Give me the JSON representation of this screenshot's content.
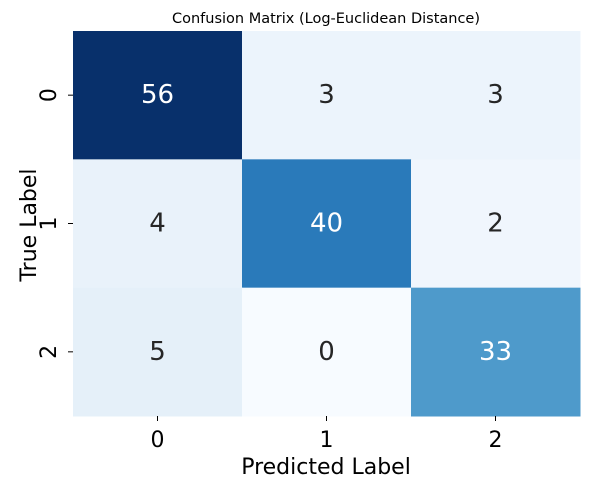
{
  "chart_data": {
    "type": "heatmap",
    "title": "Confusion Matrix (Log-Euclidean Distance)",
    "xlabel": "Predicted Label",
    "ylabel": "True Label",
    "x_categories": [
      "0",
      "1",
      "2"
    ],
    "y_categories": [
      "0",
      "1",
      "2"
    ],
    "values": [
      [
        56,
        3,
        3
      ],
      [
        4,
        40,
        2
      ],
      [
        5,
        0,
        33
      ]
    ],
    "colormap": "Blues",
    "value_range": [
      0,
      56
    ],
    "colorbar": false,
    "annotations": true
  }
}
